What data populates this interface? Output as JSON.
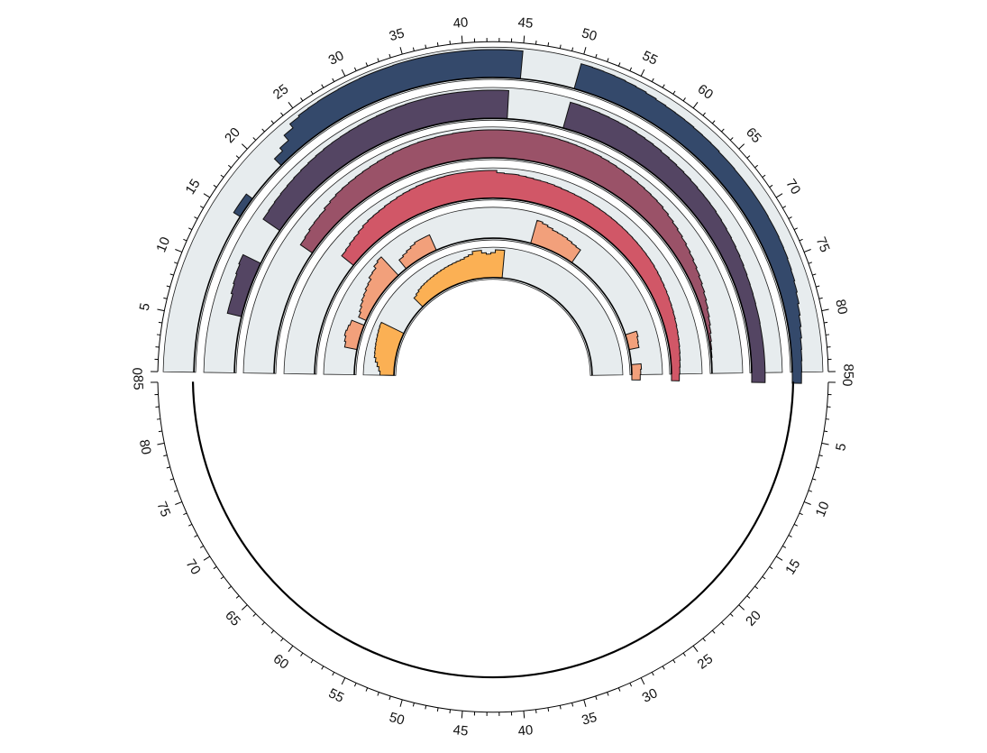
{
  "chart_data": {
    "type": "circular-histogram",
    "title": "",
    "upper_axis": {
      "min": 0,
      "max": 85,
      "major_step": 5,
      "minor_step": 1
    },
    "lower_axis": {
      "min": 0,
      "max": 85,
      "major_step": 5,
      "minor_step": 1
    },
    "tracks": [
      {
        "color": "#34496b",
        "values": [
          0,
          0,
          0,
          0,
          0,
          0,
          0,
          0,
          0,
          0,
          0,
          0,
          0,
          0,
          0,
          0.28,
          0.28,
          0.0,
          0.0,
          0.0,
          0.0,
          0.34,
          0.48,
          0.72,
          0.9,
          0.95,
          0.96,
          0.97,
          0.97,
          0.98,
          0.98,
          0.99,
          0.99,
          0.99,
          1.0,
          1.0,
          1.0,
          1.0,
          1.0,
          1.0,
          1.0,
          1.0,
          1.0,
          1.0,
          1.0,
          0.0,
          0.0,
          0.0,
          0.0,
          0.0,
          0.93,
          0.92,
          0.91,
          0.9,
          0.88,
          0.86,
          0.83,
          0.8,
          0.78,
          0.77,
          0.76,
          0.74,
          0.73,
          0.72,
          0.7,
          0.7,
          0.69,
          0.69,
          0.69,
          0.69,
          0.69,
          0.68,
          0.68,
          0.67,
          0.66,
          0.64,
          0.62,
          0.59,
          0.55,
          0.5,
          0.46,
          0.42,
          0.38,
          0.36,
          0.34,
          0.33
        ]
      },
      {
        "color": "#544563",
        "values": [
          0,
          0,
          0,
          0,
          0,
          0,
          0.52,
          0.52,
          0.58,
          0.62,
          0.66,
          0.7,
          0.0,
          0.0,
          0.0,
          0.0,
          0.72,
          0.74,
          0.76,
          0.78,
          0.8,
          0.82,
          0.84,
          0.86,
          0.88,
          0.9,
          0.91,
          0.92,
          0.93,
          0.94,
          0.95,
          0.96,
          0.97,
          0.98,
          0.99,
          0.99,
          1.0,
          1.0,
          1.0,
          1.0,
          1.0,
          1.0,
          1.0,
          1.0,
          0.0,
          0.0,
          0.0,
          0.0,
          0.0,
          0.0,
          0.95,
          0.94,
          0.93,
          0.92,
          0.91,
          0.9,
          0.89,
          0.87,
          0.85,
          0.83,
          0.8,
          0.78,
          0.76,
          0.74,
          0.72,
          0.7,
          0.69,
          0.68,
          0.66,
          0.64,
          0.62,
          0.6,
          0.58,
          0.56,
          0.54,
          0.52,
          0.51,
          0.5,
          0.49,
          0.49,
          0.48,
          0.48,
          0.48,
          0.48,
          0.48,
          0.48
        ]
      },
      {
        "color": "#9a5268",
        "values": [
          0,
          0,
          0,
          0,
          0,
          0,
          0,
          0,
          0,
          0,
          0,
          0,
          0,
          0,
          0,
          0,
          0.52,
          0.55,
          0.6,
          0.62,
          0.64,
          0.7,
          0.74,
          0.78,
          0.8,
          0.82,
          0.84,
          0.86,
          0.88,
          0.9,
          0.92,
          0.94,
          0.95,
          0.96,
          0.97,
          0.97,
          0.98,
          0.98,
          0.99,
          0.99,
          1.0,
          1.0,
          1.0,
          1.0,
          1.0,
          1.0,
          1.0,
          1.0,
          0.99,
          0.99,
          0.98,
          0.97,
          0.96,
          0.95,
          0.94,
          0.92,
          0.9,
          0.88,
          0.86,
          0.84,
          0.82,
          0.8,
          0.78,
          0.76,
          0.72,
          0.68,
          0.64,
          0.6,
          0.56,
          0.52,
          0.48,
          0.44,
          0.4,
          0.36,
          0.32,
          0.28,
          0.24,
          0.2,
          0.16,
          0.12,
          0.08,
          0.05,
          0.03,
          0.01,
          0.0,
          0.0
        ]
      },
      {
        "color": "#d15767",
        "values": [
          0,
          0,
          0,
          0,
          0,
          0,
          0,
          0,
          0,
          0,
          0,
          0,
          0,
          0,
          0,
          0,
          0,
          0,
          0.55,
          0.58,
          0.62,
          0.65,
          0.7,
          0.75,
          0.78,
          0.8,
          0.82,
          0.85,
          0.87,
          0.9,
          0.92,
          0.94,
          0.96,
          0.97,
          0.98,
          0.99,
          1.0,
          1.0,
          1.0,
          1.0,
          1.0,
          1.0,
          1.0,
          0.92,
          0.9,
          0.9,
          0.88,
          0.86,
          0.84,
          0.83,
          0.82,
          0.8,
          0.78,
          0.77,
          0.76,
          0.75,
          0.74,
          0.73,
          0.72,
          0.71,
          0.7,
          0.69,
          0.68,
          0.67,
          0.66,
          0.65,
          0.64,
          0.63,
          0.62,
          0.6,
          0.58,
          0.56,
          0.54,
          0.52,
          0.5,
          0.48,
          0.46,
          0.44,
          0.42,
          0.4,
          0.38,
          0.36,
          0.34,
          0.32,
          0.3,
          0.28
        ]
      },
      {
        "color": "#f2a07b",
        "values": [
          0,
          0,
          0,
          0,
          0,
          0.45,
          0.5,
          0.55,
          0.52,
          0.48,
          0.0,
          0.3,
          0.36,
          0.42,
          0.48,
          0.52,
          0.58,
          0.62,
          0.72,
          0.75,
          0.85,
          0.9,
          0.0,
          0.0,
          0.4,
          0.45,
          0.5,
          0.55,
          0.6,
          0.6,
          0.6,
          0.0,
          0.0,
          0.0,
          0.0,
          0.0,
          0.0,
          0.0,
          0.0,
          0.0,
          0.0,
          0.0,
          0.0,
          0.0,
          0.0,
          0.0,
          0.0,
          0.0,
          0.0,
          0.0,
          0.85,
          0.8,
          0.75,
          0.7,
          0.68,
          0.66,
          0.62,
          0.58,
          0.55,
          0.0,
          0.0,
          0.0,
          0.0,
          0.0,
          0.0,
          0.0,
          0.0,
          0.0,
          0.0,
          0.0,
          0.0,
          0.0,
          0.0,
          0.0,
          0.0,
          0.0,
          0.0,
          0.42,
          0.38,
          0.36,
          0.0,
          0.0,
          0.0,
          0.35,
          0.32,
          0.3
        ]
      },
      {
        "color": "#fbb054",
        "values": [
          0.5,
          0.55,
          0.62,
          0.7,
          0.76,
          0.78,
          0.8,
          0.82,
          0.84,
          0.86,
          0.88,
          0.9,
          0.0,
          0.0,
          0.0,
          0.0,
          0.0,
          0.0,
          0.0,
          0.0,
          0.0,
          0.45,
          0.5,
          0.55,
          0.58,
          0.6,
          0.62,
          0.64,
          0.66,
          0.68,
          0.7,
          0.72,
          0.74,
          0.76,
          0.78,
          0.8,
          0.85,
          0.9,
          1.0,
          1.0,
          0.9,
          0.85,
          0.9,
          1.0,
          1.0,
          0.0,
          0.0,
          0.0,
          0.0,
          0.0,
          0.0,
          0.0,
          0.0,
          0.0,
          0.0,
          0.0,
          0.0,
          0.0,
          0.0,
          0.0,
          0.0,
          0.0,
          0.0,
          0.0,
          0.0,
          0.0,
          0.0,
          0.0,
          0.0,
          0.0,
          0.0,
          0.0,
          0.0,
          0.0,
          0.0,
          0.0,
          0.0,
          0.0,
          0.0,
          0.0,
          0.0,
          0.0,
          0.0,
          0.0,
          0.0,
          0.0
        ]
      }
    ]
  }
}
